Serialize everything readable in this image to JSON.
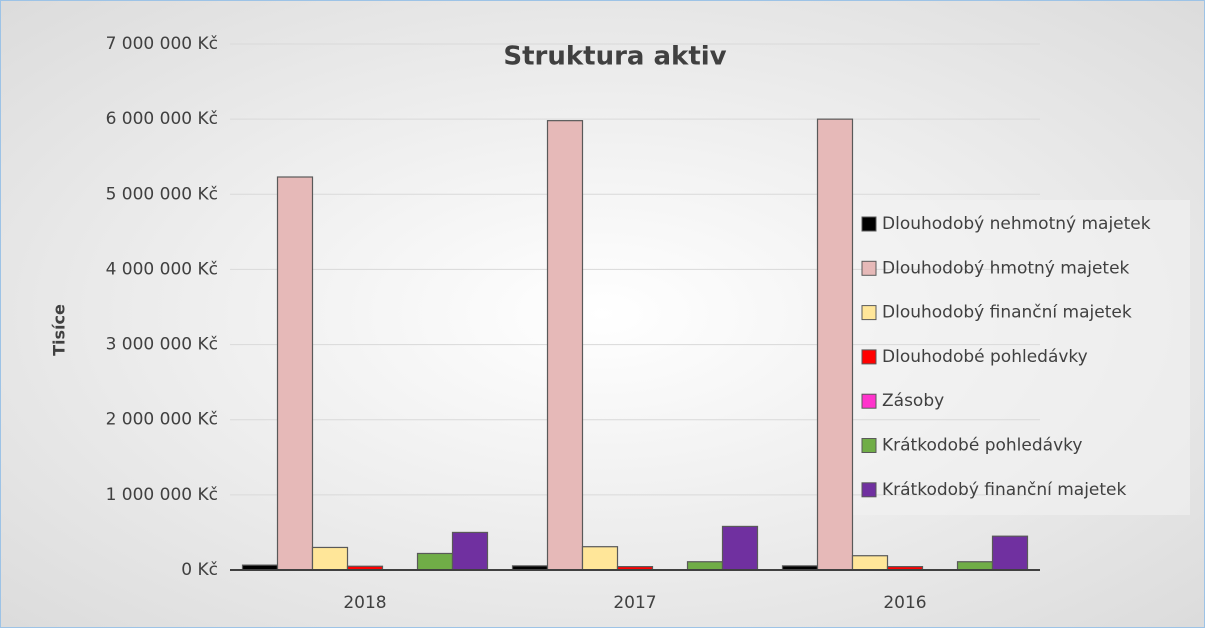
{
  "chart_data": {
    "type": "bar",
    "title": "Struktura aktiv",
    "y_label": "Tisíce",
    "categories": [
      "2018",
      "2017",
      "2016"
    ],
    "series": [
      {
        "name": "Dlouhodobý nehmotný majetek",
        "color": "#000000",
        "values": [
          65000,
          55000,
          55000
        ]
      },
      {
        "name": "Dlouhodobý hmotný majetek",
        "color": "#e6b9b8",
        "values": [
          5230000,
          5980000,
          6000000
        ]
      },
      {
        "name": "Dlouhodobý finanční majetek",
        "color": "#ffe699",
        "values": [
          300000,
          310000,
          190000
        ]
      },
      {
        "name": "Dlouhodobé pohledávky",
        "color": "#ff0000",
        "values": [
          50000,
          45000,
          45000
        ]
      },
      {
        "name": "Zásoby",
        "color": "#ff33cc",
        "values": [
          0,
          0,
          0
        ]
      },
      {
        "name": "Krátkodobé pohledávky",
        "color": "#70ad47",
        "values": [
          220000,
          110000,
          110000
        ]
      },
      {
        "name": "Krátkodobý finanční majetek",
        "color": "#7030a0",
        "values": [
          500000,
          580000,
          450000
        ]
      }
    ],
    "ylim": [
      0,
      7000000
    ],
    "yticks": [
      {
        "value": 0,
        "label": "0 Kč"
      },
      {
        "value": 1000000,
        "label": "1 000 000 Kč"
      },
      {
        "value": 2000000,
        "label": "2 000 000 Kč"
      },
      {
        "value": 3000000,
        "label": "3 000 000 Kč"
      },
      {
        "value": 4000000,
        "label": "4 000 000 Kč"
      },
      {
        "value": 5000000,
        "label": "5 000 000 Kč"
      },
      {
        "value": 6000000,
        "label": "6 000 000 Kč"
      },
      {
        "value": 7000000,
        "label": "7 000 000 Kč"
      }
    ],
    "grid": true,
    "legend": "right"
  }
}
